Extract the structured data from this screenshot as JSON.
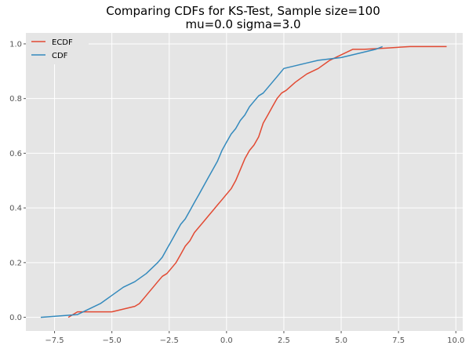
{
  "chart_data": {
    "type": "line",
    "title": "Comparing CDFs for KS-Test, Sample size=100",
    "subtitle": "mu=0.0 sigma=3.0",
    "xlim": [
      -8.75,
      10.3
    ],
    "ylim": [
      -0.05,
      1.04
    ],
    "x_ticks": [
      -7.5,
      -5.0,
      -2.5,
      0.0,
      2.5,
      5.0,
      7.5,
      10.0
    ],
    "x_tick_labels": [
      "−7.5",
      "−5.0",
      "−2.5",
      "0.0",
      "2.5",
      "5.0",
      "7.5",
      "10.0"
    ],
    "y_ticks": [
      0.0,
      0.2,
      0.4,
      0.6,
      0.8,
      1.0
    ],
    "y_tick_labels": [
      "0.0",
      "0.2",
      "0.4",
      "0.6",
      "0.8",
      "1.0"
    ],
    "grid": true,
    "legend_position": "top-left",
    "colors": {
      "background": "#e5e5e5",
      "grid": "#ffffff",
      "ECDF": "#e24a33",
      "CDF": "#348abd"
    },
    "series": [
      {
        "name": "ECDF",
        "x": [
          -6.9,
          -6.5,
          -6.0,
          -5.0,
          -4.0,
          -3.8,
          -3.6,
          -3.4,
          -3.2,
          -3.0,
          -2.8,
          -2.6,
          -2.4,
          -2.2,
          -2.0,
          -1.8,
          -1.6,
          -1.4,
          -1.2,
          -1.0,
          -0.8,
          -0.6,
          -0.4,
          -0.2,
          0.0,
          0.2,
          0.4,
          0.6,
          0.8,
          1.0,
          1.2,
          1.4,
          1.6,
          1.8,
          2.0,
          2.2,
          2.4,
          2.6,
          3.0,
          3.5,
          4.0,
          4.5,
          5.0,
          5.5,
          6.0,
          7.0,
          8.0,
          9.6
        ],
        "y": [
          0.0,
          0.02,
          0.02,
          0.02,
          0.04,
          0.05,
          0.07,
          0.09,
          0.11,
          0.13,
          0.15,
          0.16,
          0.18,
          0.2,
          0.23,
          0.26,
          0.28,
          0.31,
          0.33,
          0.35,
          0.37,
          0.39,
          0.41,
          0.43,
          0.45,
          0.47,
          0.5,
          0.54,
          0.58,
          0.61,
          0.63,
          0.66,
          0.71,
          0.74,
          0.77,
          0.8,
          0.82,
          0.83,
          0.86,
          0.89,
          0.91,
          0.94,
          0.96,
          0.98,
          0.98,
          0.985,
          0.99,
          0.99
        ]
      },
      {
        "name": "CDF",
        "x": [
          -8.1,
          -6.5,
          -6.0,
          -5.5,
          -5.0,
          -4.5,
          -4.0,
          -3.5,
          -3.0,
          -2.8,
          -2.6,
          -2.4,
          -2.2,
          -2.0,
          -1.8,
          -1.6,
          -1.4,
          -1.2,
          -1.0,
          -0.8,
          -0.6,
          -0.4,
          -0.2,
          0.0,
          0.2,
          0.4,
          0.6,
          0.8,
          1.0,
          1.2,
          1.4,
          1.6,
          1.8,
          2.0,
          2.2,
          2.5,
          3.0,
          3.5,
          4.0,
          4.5,
          5.0,
          5.5,
          6.0,
          6.5,
          6.8
        ],
        "y": [
          0.0,
          0.01,
          0.03,
          0.05,
          0.08,
          0.11,
          0.13,
          0.16,
          0.2,
          0.22,
          0.25,
          0.28,
          0.31,
          0.34,
          0.36,
          0.39,
          0.42,
          0.45,
          0.48,
          0.51,
          0.54,
          0.57,
          0.61,
          0.64,
          0.67,
          0.69,
          0.72,
          0.74,
          0.77,
          0.79,
          0.81,
          0.82,
          0.84,
          0.86,
          0.88,
          0.91,
          0.92,
          0.93,
          0.94,
          0.945,
          0.95,
          0.96,
          0.97,
          0.98,
          0.99
        ]
      }
    ]
  }
}
